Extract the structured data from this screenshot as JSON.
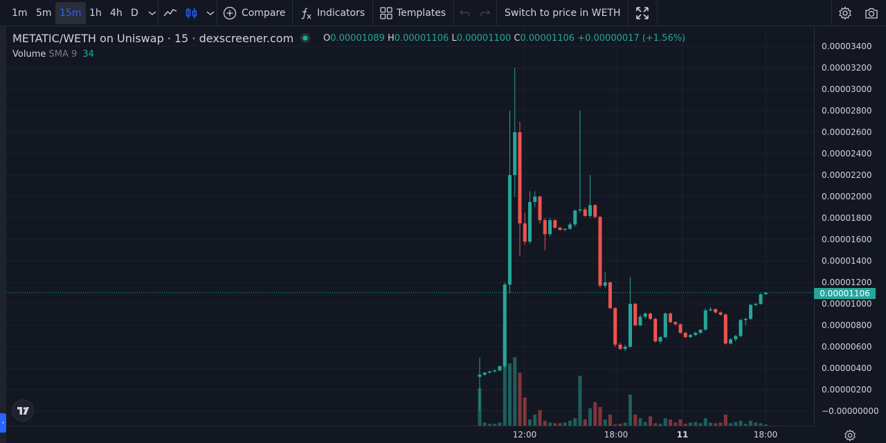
{
  "toolbar": {
    "intervals": [
      {
        "label": "1m",
        "active": false
      },
      {
        "label": "5m",
        "active": false
      },
      {
        "label": "15m",
        "active": true
      },
      {
        "label": "1h",
        "active": false
      },
      {
        "label": "4h",
        "active": false
      },
      {
        "label": "D",
        "active": false
      }
    ],
    "compare_label": "Compare",
    "indicators_label": "Indicators",
    "templates_label": "Templates",
    "switch_label": "Switch to price in WETH"
  },
  "legend": {
    "symbol_title": "METATIC/WETH on Uniswap · 15 · dexscreener.com",
    "o_label": "O",
    "o_value": "0.00001089",
    "h_label": "H",
    "h_value": "0.00001106",
    "l_label": "L",
    "l_value": "0.00001100",
    "c_label": "C",
    "c_value": "0.00001106",
    "change": "+0.00000017 (+1.56%)",
    "volume_label": "Volume",
    "volume_sma": "SMA 9",
    "volume_value": "34"
  },
  "price_axis": {
    "ticks": [
      "0.00003400",
      "0.00003200",
      "0.00003000",
      "0.00002800",
      "0.00002600",
      "0.00002400",
      "0.00002200",
      "0.00002000",
      "0.00001800",
      "0.00001600",
      "0.00001400",
      "0.00001200",
      "0.00001000",
      "0.00000800",
      "0.00000600",
      "0.00000400",
      "0.00000200",
      "−0.00000000"
    ],
    "current_price": "0.00001106"
  },
  "time_axis": {
    "ticks": [
      {
        "label": "12:00",
        "bold": false
      },
      {
        "label": "18:00",
        "bold": false
      },
      {
        "label": "11",
        "bold": true
      },
      {
        "label": "18:00",
        "bold": false
      }
    ]
  },
  "colors": {
    "up": "#26a69a",
    "down": "#ef5350",
    "bg": "#131722",
    "grid": "#1e222d",
    "accent": "#2962ff"
  },
  "chart_data": {
    "type": "candlestick",
    "price_unit": "WETH",
    "candles": [
      [
        3.2e-06,
        5e-06,
        0.0,
        3.4e-06
      ],
      [
        3.4e-06,
        3.6e-06,
        3.3e-06,
        3.6e-06
      ],
      [
        3.6e-06,
        3.8e-06,
        3.5e-06,
        3.7e-06
      ],
      [
        3.7e-06,
        3.9e-06,
        3.6e-06,
        3.8e-06
      ],
      [
        3.8e-06,
        4.2e-06,
        3.7e-06,
        4.2e-06
      ],
      [
        4.2e-06,
        1.2e-05,
        4e-06,
        1.18e-05
      ],
      [
        1.18e-05,
        2.8e-05,
        1.1e-05,
        2.2e-05
      ],
      [
        2.2e-05,
        3.2e-05,
        2e-05,
        2.6e-05
      ],
      [
        2.6e-05,
        2.7e-05,
        1.45e-05,
        1.75e-05
      ],
      [
        1.75e-05,
        1.85e-05,
        1.55e-05,
        1.58e-05
      ],
      [
        1.58e-05,
        2.05e-05,
        1.56e-05,
        1.95e-05
      ],
      [
        1.95e-05,
        2.05e-05,
        1.9e-05,
        2e-05
      ],
      [
        2e-05,
        2.01e-05,
        1.75e-05,
        1.78e-05
      ],
      [
        1.78e-05,
        1.8e-05,
        1.5e-05,
        1.65e-05
      ],
      [
        1.65e-05,
        1.8e-05,
        1.63e-05,
        1.78e-05
      ],
      [
        1.78e-05,
        1.79e-05,
        1.7e-05,
        1.71e-05
      ],
      [
        1.71e-05,
        1.72e-05,
        1.68e-05,
        1.69e-05
      ],
      [
        1.69e-05,
        1.7e-05,
        1.68e-05,
        1.7e-05
      ],
      [
        1.7e-05,
        1.76e-05,
        1.69e-05,
        1.74e-05
      ],
      [
        1.74e-05,
        1.88e-05,
        1.72e-05,
        1.87e-05
      ],
      [
        1.87e-05,
        2.8e-05,
        1.85e-05,
        1.88e-05
      ],
      [
        1.88e-05,
        1.9e-05,
        1.81e-05,
        1.82e-05
      ],
      [
        1.82e-05,
        2.2e-05,
        1.8e-05,
        1.92e-05
      ],
      [
        1.92e-05,
        1.93e-05,
        1.8e-05,
        1.81e-05
      ],
      [
        1.81e-05,
        1.82e-05,
        1.15e-05,
        1.17e-05
      ],
      [
        1.17e-05,
        1.3e-05,
        1.15e-05,
        1.2e-05
      ],
      [
        1.2e-05,
        1.21e-05,
        9.5e-06,
        9.6e-06
      ],
      [
        9.6e-06,
        9.7e-06,
        6e-06,
        6.2e-06
      ],
      [
        6.2e-06,
        6.4e-06,
        5.7e-06,
        5.8e-06
      ],
      [
        5.8e-06,
        6.2e-06,
        5.6e-06,
        6e-06
      ],
      [
        6e-06,
        1.25e-05,
        5.9e-06,
        1e-05
      ],
      [
        1e-05,
        1.01e-05,
        7.9e-06,
        8e-06
      ],
      [
        8e-06,
        9e-06,
        7.9e-06,
        8.8e-06
      ],
      [
        8.8e-06,
        9.2e-06,
        8.6e-06,
        9.1e-06
      ],
      [
        9.1e-06,
        9.2e-06,
        8.5e-06,
        8.6e-06
      ],
      [
        8.6e-06,
        8.7e-06,
        6.4e-06,
        6.5e-06
      ],
      [
        6.5e-06,
        7e-06,
        6.3e-06,
        6.9e-06
      ],
      [
        6.9e-06,
        9.2e-06,
        6.8e-06,
        9.1e-06
      ],
      [
        9.1e-06,
        9.2e-06,
        8.2e-06,
        8.3e-06
      ],
      [
        8.3e-06,
        8.4e-06,
        8e-06,
        8.1e-06
      ],
      [
        8.1e-06,
        8.2e-06,
        7.2e-06,
        7.3e-06
      ],
      [
        7.3e-06,
        7.4e-06,
        6.8e-06,
        6.9e-06
      ],
      [
        6.9e-06,
        7.2e-06,
        6.8e-06,
        7.1e-06
      ],
      [
        7.1e-06,
        7.4e-06,
        7e-06,
        7.3e-06
      ],
      [
        7.3e-06,
        7.6e-06,
        7.2e-06,
        7.6e-06
      ],
      [
        7.6e-06,
        9.6e-06,
        7.5e-06,
        9.4e-06
      ],
      [
        9.4e-06,
        9.7e-06,
        9.3e-06,
        9.5e-06
      ],
      [
        9.5e-06,
        9.6e-06,
        9.1e-06,
        9.2e-06
      ],
      [
        9.2e-06,
        9.3e-06,
        8.9e-06,
        9e-06
      ],
      [
        9e-06,
        9.1e-06,
        6.2e-06,
        6.3e-06
      ],
      [
        6.3e-06,
        6.8e-06,
        6.2e-06,
        6.7e-06
      ],
      [
        6.7e-06,
        7.1e-06,
        6.5e-06,
        7e-06
      ],
      [
        7e-06,
        8.6e-06,
        6.9e-06,
        8.5e-06
      ],
      [
        8.5e-06,
        8.7e-06,
        8e-06,
        8.6e-06
      ],
      [
        8.6e-06,
        1e-05,
        8.5e-06,
        9.9e-06
      ],
      [
        9.9e-06,
        1.01e-05,
        9.8e-06,
        1e-05
      ],
      [
        1e-05,
        1.1e-05,
        9.9e-06,
        1.089e-05
      ],
      [
        1.089e-05,
        1.106e-05,
        1.1e-05,
        1.106e-05
      ]
    ],
    "volumes": [
      60,
      5,
      3,
      3,
      5,
      160,
      100,
      110,
      85,
      45,
      10,
      18,
      25,
      8,
      5,
      4,
      4,
      5,
      8,
      12,
      80,
      10,
      28,
      38,
      30,
      10,
      18,
      2,
      3,
      5,
      50,
      18,
      12,
      6,
      15,
      4,
      3,
      12,
      10,
      5,
      10,
      3,
      5,
      6,
      4,
      12,
      5,
      4,
      5,
      18,
      4,
      6,
      8,
      3,
      8,
      5,
      4,
      2
    ],
    "ylim": [
      0,
      3.47e-05
    ]
  }
}
